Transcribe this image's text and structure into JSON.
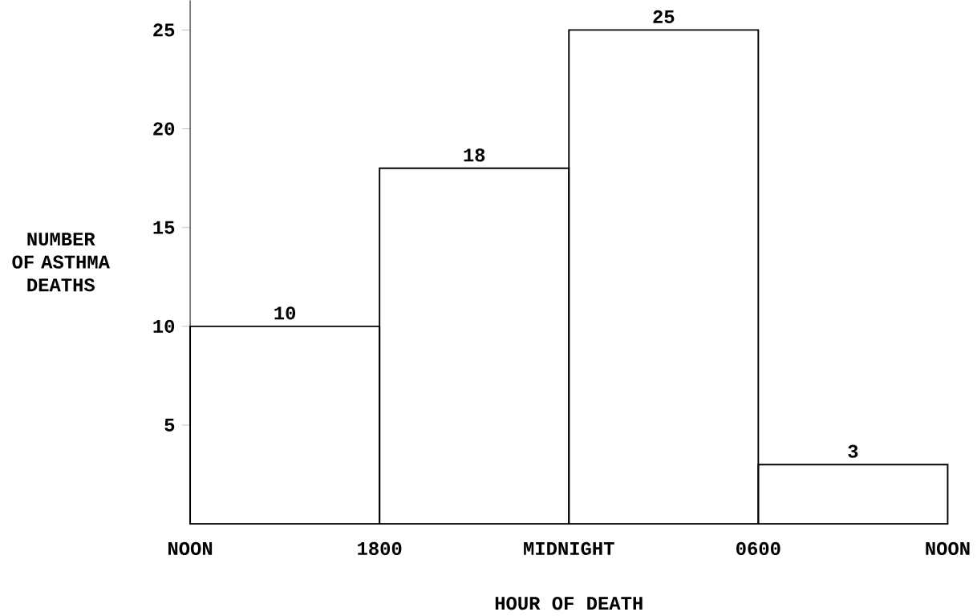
{
  "chart_data": {
    "type": "bar",
    "xlabel": "HOUR OF DEATH",
    "ylabel": "NUMBER OF ASTHMA DEATHS",
    "categories": [
      null,
      null,
      null,
      null
    ],
    "values": [
      10,
      18,
      25,
      3
    ],
    "value_labels": [
      "10",
      "18",
      "25",
      "3"
    ],
    "color": "#000000",
    "ylim": [
      0,
      26.5
    ],
    "yticks": [
      5,
      10,
      15,
      20,
      25
    ],
    "annotations": [
      "NOON",
      "1800",
      "MIDNIGHT",
      "0600",
      "NOON"
    ]
  }
}
